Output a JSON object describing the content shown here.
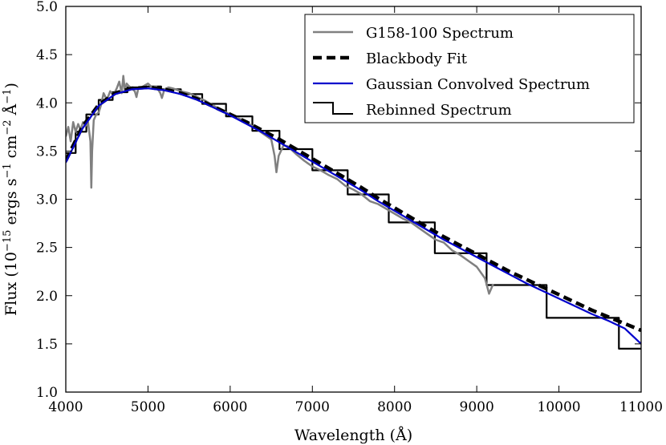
{
  "chart_data": {
    "type": "line",
    "title": "",
    "xlabel": "Wavelength (Å)",
    "ylabel": {
      "prefix": "Flux (10",
      "exp1": "−15",
      "mid1": " ergs s",
      "exp2": "−1",
      "mid2": " cm",
      "exp3": "−2",
      "mid3": " Å",
      "exp4": "−1",
      "suffix": ")"
    },
    "xlim": [
      4000,
      11000
    ],
    "ylim": [
      1.0,
      5.0
    ],
    "xticks": [
      4000,
      5000,
      6000,
      7000,
      8000,
      9000,
      10000,
      11000
    ],
    "yticks": [
      1.0,
      1.5,
      2.0,
      2.5,
      3.0,
      3.5,
      4.0,
      4.5,
      5.0
    ],
    "xtick_labels": [
      "4000",
      "5000",
      "6000",
      "7000",
      "8000",
      "9000",
      "10000",
      "11000"
    ],
    "ytick_labels": [
      "1.0",
      "1.5",
      "2.0",
      "2.5",
      "3.0",
      "3.5",
      "4.0",
      "4.5",
      "5.0"
    ],
    "grid": false,
    "legend_position": "top-right",
    "series": [
      {
        "name": "G158-100 Spectrum",
        "style": "solid",
        "color": "#808080",
        "x": [
          4000,
          4030,
          4060,
          4090,
          4120,
          4150,
          4180,
          4210,
          4240,
          4270,
          4300,
          4310,
          4320,
          4340,
          4370,
          4400,
          4430,
          4460,
          4500,
          4540,
          4580,
          4620,
          4650,
          4680,
          4700,
          4720,
          4740,
          4760,
          4800,
          4840,
          4860,
          4880,
          4920,
          4960,
          5000,
          5050,
          5100,
          5150,
          5170,
          5200,
          5250,
          5300,
          5400,
          5500,
          5600,
          5700,
          5800,
          5900,
          6000,
          6100,
          6200,
          6300,
          6400,
          6500,
          6540,
          6563,
          6590,
          6650,
          6700,
          6800,
          6900,
          7000,
          7100,
          7200,
          7300,
          7400,
          7500,
          7600,
          7700,
          7800,
          7900,
          8000,
          8100,
          8200,
          8300,
          8400,
          8500,
          8600,
          8700,
          8800,
          8900,
          9000,
          9100,
          9150,
          9200
        ],
        "y": [
          3.65,
          3.75,
          3.6,
          3.8,
          3.7,
          3.78,
          3.72,
          3.8,
          3.76,
          3.8,
          3.6,
          3.12,
          3.5,
          3.82,
          3.88,
          3.9,
          3.98,
          4.1,
          4.03,
          4.12,
          4.08,
          4.15,
          4.22,
          4.1,
          4.28,
          4.12,
          4.2,
          4.18,
          4.15,
          4.12,
          4.06,
          4.14,
          4.16,
          4.18,
          4.2,
          4.16,
          4.17,
          4.1,
          4.05,
          4.14,
          4.16,
          4.15,
          4.12,
          4.1,
          4.06,
          4.02,
          3.97,
          3.92,
          3.88,
          3.84,
          3.8,
          3.74,
          3.68,
          3.62,
          3.45,
          3.28,
          3.45,
          3.56,
          3.55,
          3.47,
          3.4,
          3.34,
          3.3,
          3.25,
          3.21,
          3.14,
          3.1,
          3.05,
          2.98,
          2.95,
          2.9,
          2.85,
          2.8,
          2.76,
          2.7,
          2.64,
          2.58,
          2.55,
          2.47,
          2.42,
          2.36,
          2.3,
          2.18,
          2.02,
          2.12
        ]
      },
      {
        "name": "Blackbody Fit",
        "style": "dashed",
        "color": "#000000",
        "x": [
          4000,
          4200,
          4400,
          4600,
          4800,
          5000,
          5200,
          5400,
          5600,
          5800,
          6000,
          6200,
          6400,
          6600,
          6800,
          7000,
          7200,
          7400,
          7600,
          7800,
          8000,
          8200,
          8400,
          8600,
          8800,
          9000,
          9200,
          9400,
          9600,
          9800,
          10000,
          10200,
          10400,
          10600,
          10800,
          11000
        ],
        "y": [
          3.4,
          3.75,
          3.98,
          4.1,
          4.15,
          4.16,
          4.14,
          4.1,
          4.04,
          3.96,
          3.88,
          3.8,
          3.71,
          3.62,
          3.52,
          3.42,
          3.32,
          3.22,
          3.12,
          3.01,
          2.91,
          2.81,
          2.71,
          2.61,
          2.52,
          2.43,
          2.34,
          2.25,
          2.17,
          2.09,
          2.01,
          1.93,
          1.85,
          1.78,
          1.71,
          1.64
        ]
      },
      {
        "name": "Gaussian Convolved Spectrum",
        "style": "solid",
        "color": "#0000cc",
        "x": [
          4000,
          4200,
          4400,
          4600,
          4800,
          5000,
          5200,
          5400,
          5600,
          5800,
          6000,
          6200,
          6400,
          6600,
          6800,
          7000,
          7200,
          7400,
          7600,
          7800,
          8000,
          8200,
          8400,
          8600,
          8800,
          9000,
          9200,
          9400,
          9600,
          9800,
          10000,
          10200,
          10400,
          10600,
          10800,
          11000
        ],
        "y": [
          3.38,
          3.73,
          3.97,
          4.09,
          4.14,
          4.15,
          4.13,
          4.09,
          4.03,
          3.95,
          3.87,
          3.78,
          3.69,
          3.59,
          3.49,
          3.39,
          3.29,
          3.19,
          3.09,
          2.98,
          2.88,
          2.78,
          2.68,
          2.58,
          2.49,
          2.4,
          2.31,
          2.22,
          2.13,
          2.05,
          1.97,
          1.89,
          1.81,
          1.74,
          1.66,
          1.5
        ]
      },
      {
        "name": "Rebinned Spectrum",
        "style": "step",
        "color": "#000000",
        "edges": [
          4000,
          4120,
          4250,
          4400,
          4570,
          4750,
          4950,
          5160,
          5400,
          5660,
          5950,
          6270,
          6600,
          7000,
          7430,
          7930,
          8490,
          9120,
          9850,
          10730,
          11000
        ],
        "values": [
          3.48,
          3.7,
          3.88,
          4.03,
          4.11,
          4.16,
          4.17,
          4.14,
          4.09,
          3.99,
          3.86,
          3.71,
          3.52,
          3.3,
          3.05,
          2.76,
          2.44,
          2.11,
          1.77,
          1.45
        ]
      }
    ]
  }
}
